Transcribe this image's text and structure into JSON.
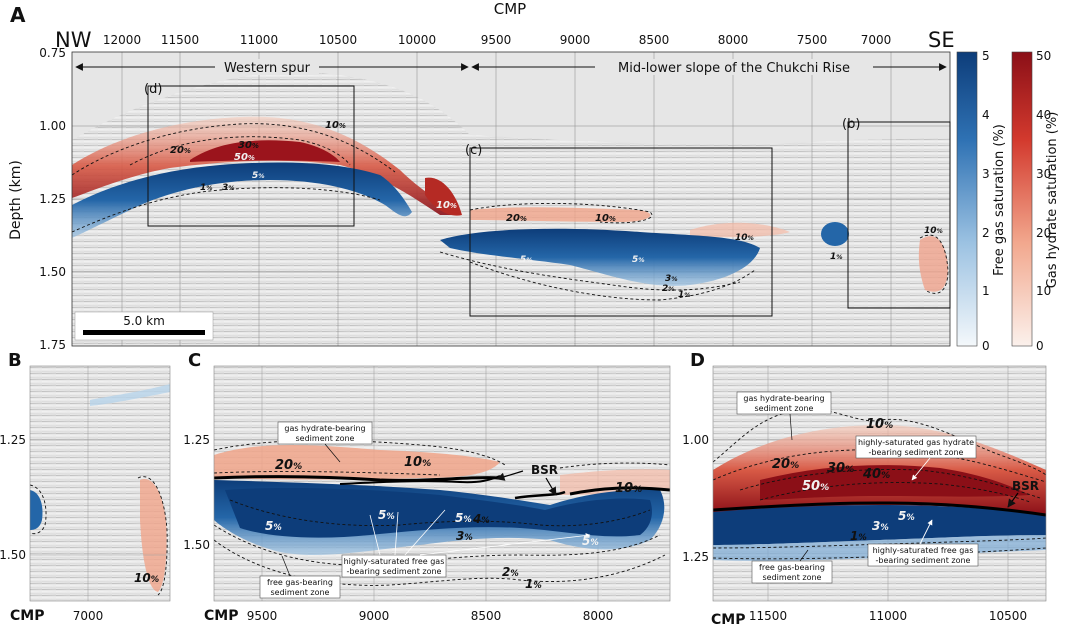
{
  "figure": {
    "panel_labels": {
      "a": "A",
      "b": "B",
      "c": "C",
      "d": "D"
    },
    "panel_a": {
      "top_title": "CMP",
      "nw": "NW",
      "se": "SE",
      "ylabel": "Depth (km)",
      "cmp_ticks": [
        "12000",
        "11500",
        "11000",
        "10500",
        "10000",
        "9500",
        "9000",
        "8500",
        "8000",
        "7500",
        "7000"
      ],
      "depth_ticks": [
        "0.75",
        "1.00",
        "1.25",
        "1.50",
        "1.75"
      ],
      "region_western": "Western spur",
      "region_mid": "Mid-lower slope of the Chukchi Rise",
      "scale_bar": "5.0 km",
      "box_labels": {
        "d": "(d)",
        "c": "(c)",
        "b": "(b)"
      },
      "contours": {
        "c20": "20",
        "c30": "30",
        "c10": "10",
        "c50": "50",
        "c1": "1",
        "c3": "3",
        "c5": "5",
        "c20b": "20",
        "c10b": "10",
        "c10c": "10",
        "c5b": "5",
        "c5c": "5",
        "c3b": "3",
        "c2": "2",
        "c1b": "1",
        "c1c": "1",
        "c10d": "10",
        "pct": "%"
      }
    },
    "colorbars": {
      "free_gas": {
        "label": "Free gas saturation (%)",
        "ticks": [
          "5",
          "4",
          "3",
          "2",
          "1",
          "0"
        ],
        "color_low": "#f4f8fb",
        "color_high": "#0d3d7a"
      },
      "hydrate": {
        "label": "Gas hydrate saturation (%)",
        "ticks": [
          "50",
          "40",
          "30",
          "20",
          "10",
          "0"
        ],
        "color_low": "#fbf1ec",
        "color_high": "#8b0f17"
      }
    },
    "panel_b": {
      "depth_ticks": [
        "1.25",
        "1.50"
      ],
      "cmp_label": "CMP",
      "cmp_ticks": [
        "7000"
      ],
      "contour": "10"
    },
    "panel_c": {
      "depth_ticks": [
        "1.25",
        "1.50"
      ],
      "cmp_label": "CMP",
      "cmp_ticks": [
        "9500",
        "9000",
        "8500",
        "8000"
      ],
      "bsr": "BSR",
      "labels": {
        "hydrate_zone_1": "gas hydrate-bearing",
        "hydrate_zone_2": "sediment zone",
        "free_sat_1": "highly-saturated free gas",
        "free_sat_2": "-bearing sediment zone",
        "free_zone_1": "free gas-bearing",
        "free_zone_2": "sediment zone"
      },
      "contours": {
        "c20": "20",
        "c10": "10",
        "c10b": "10",
        "c5a": "5",
        "c5b": "5",
        "c5c": "5",
        "c5d": "5",
        "c4": "4",
        "c3": "3",
        "c2": "2",
        "c1": "1"
      }
    },
    "panel_d": {
      "depth_ticks": [
        "1.00",
        "1.25"
      ],
      "cmp_label": "CMP",
      "cmp_ticks": [
        "11500",
        "11000",
        "10500"
      ],
      "bsr": "BSR",
      "labels": {
        "hydrate_zone_1": "gas hydrate-bearing",
        "hydrate_zone_2": "sediment zone",
        "hydrate_sat_1": "highly-saturated gas hydrate",
        "hydrate_sat_2": "-bearing sediment zone",
        "free_sat_1": "highly-saturated free gas",
        "free_sat_2": "-bearing sediment zone",
        "free_zone_1": "free gas-bearing",
        "free_zone_2": "sediment zone"
      },
      "contours": {
        "c10": "10",
        "c20": "20",
        "c30": "30",
        "c40": "40",
        "c50": "50",
        "c1": "1",
        "c3": "3",
        "c5": "5"
      }
    }
  }
}
